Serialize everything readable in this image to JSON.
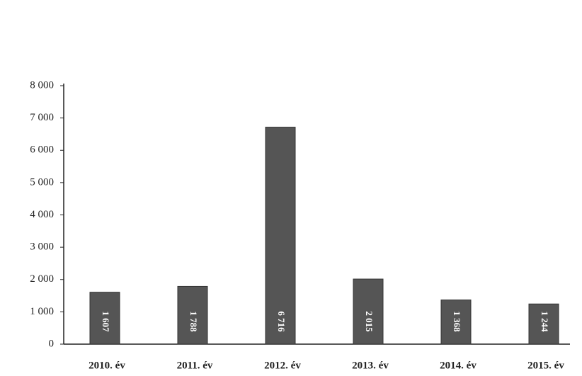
{
  "chart_data": {
    "type": "bar",
    "categories": [
      "2010. év",
      "2011. év",
      "2012. év",
      "2013. év",
      "2014. év",
      "2015. év"
    ],
    "values": [
      1607,
      1788,
      6716,
      2015,
      1368,
      1244
    ],
    "value_labels": [
      "1 607",
      "1 788",
      "6 716",
      "2 015",
      "1 368",
      "1 244"
    ],
    "color": "#555555",
    "ylim": [
      0,
      8000
    ],
    "yticks": [
      0,
      {
        "value": 1000,
        "label": "1 000"
      },
      {
        "value": 2000,
        "label": "2 000"
      },
      {
        "value": 3000,
        "label": "3 000"
      },
      {
        "value": 4000,
        "label": "4 000"
      },
      {
        "value": 5000,
        "label": "5 000"
      },
      {
        "value": 6000,
        "label": "6 000"
      },
      {
        "value": 7000,
        "label": "7 000"
      },
      {
        "value": 8000,
        "label": "8 000"
      }
    ],
    "grid": false
  }
}
